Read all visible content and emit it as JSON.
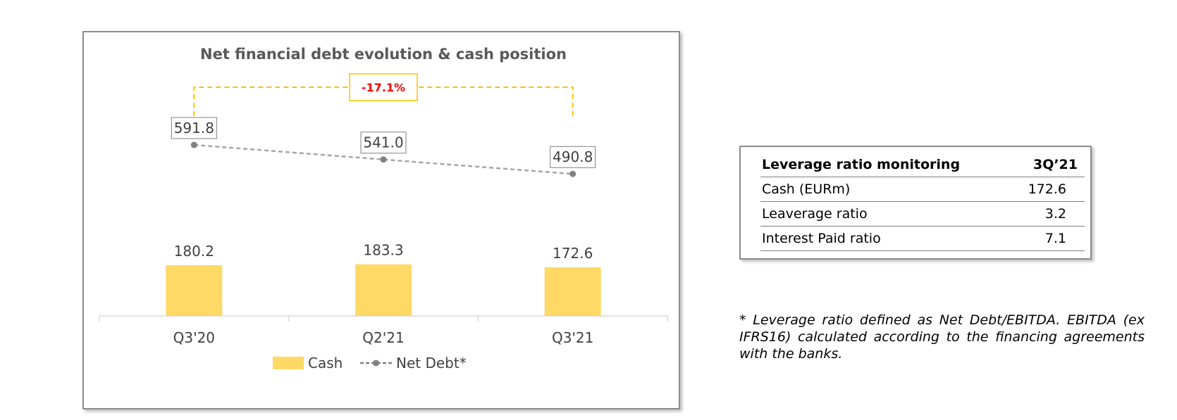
{
  "chart_data": {
    "type": "bar+line",
    "title": "Net financial debt evolution & cash position",
    "categories": [
      "Q3'20",
      "Q2'21",
      "Q3'21"
    ],
    "series": [
      {
        "name": "Cash",
        "type": "bar",
        "values": [
          180.2,
          183.3,
          172.6
        ],
        "labels": [
          "180.2",
          "183.3",
          "172.6"
        ],
        "color": "#FFD966"
      },
      {
        "name": "Net Debt*",
        "type": "line",
        "style": "dashed",
        "values": [
          591.8,
          541.0,
          490.8
        ],
        "labels": [
          "591.8",
          "541.0",
          "490.8"
        ],
        "color": "#A6A6A6"
      }
    ],
    "annotation": {
      "text": "-17.1%",
      "color": "#FF0000",
      "bracket_color": "#FFC000"
    },
    "legend": {
      "placement": "bottom",
      "entries": [
        "Cash",
        "Net Debt*"
      ]
    },
    "grid": false
  },
  "table": {
    "header": [
      "Leverage ratio monitoring",
      "3Q’21"
    ],
    "rows": [
      [
        "Cash (EURm)",
        "172.6"
      ],
      [
        "Leaverage ratio",
        "3.2"
      ],
      [
        "Interest Paid ratio",
        "7.1"
      ]
    ]
  },
  "footnote": "* Leverage ratio defined as Net Debt/EBITDA. EBITDA (ex IFRS16) calculated according to the financing agreements with the banks."
}
